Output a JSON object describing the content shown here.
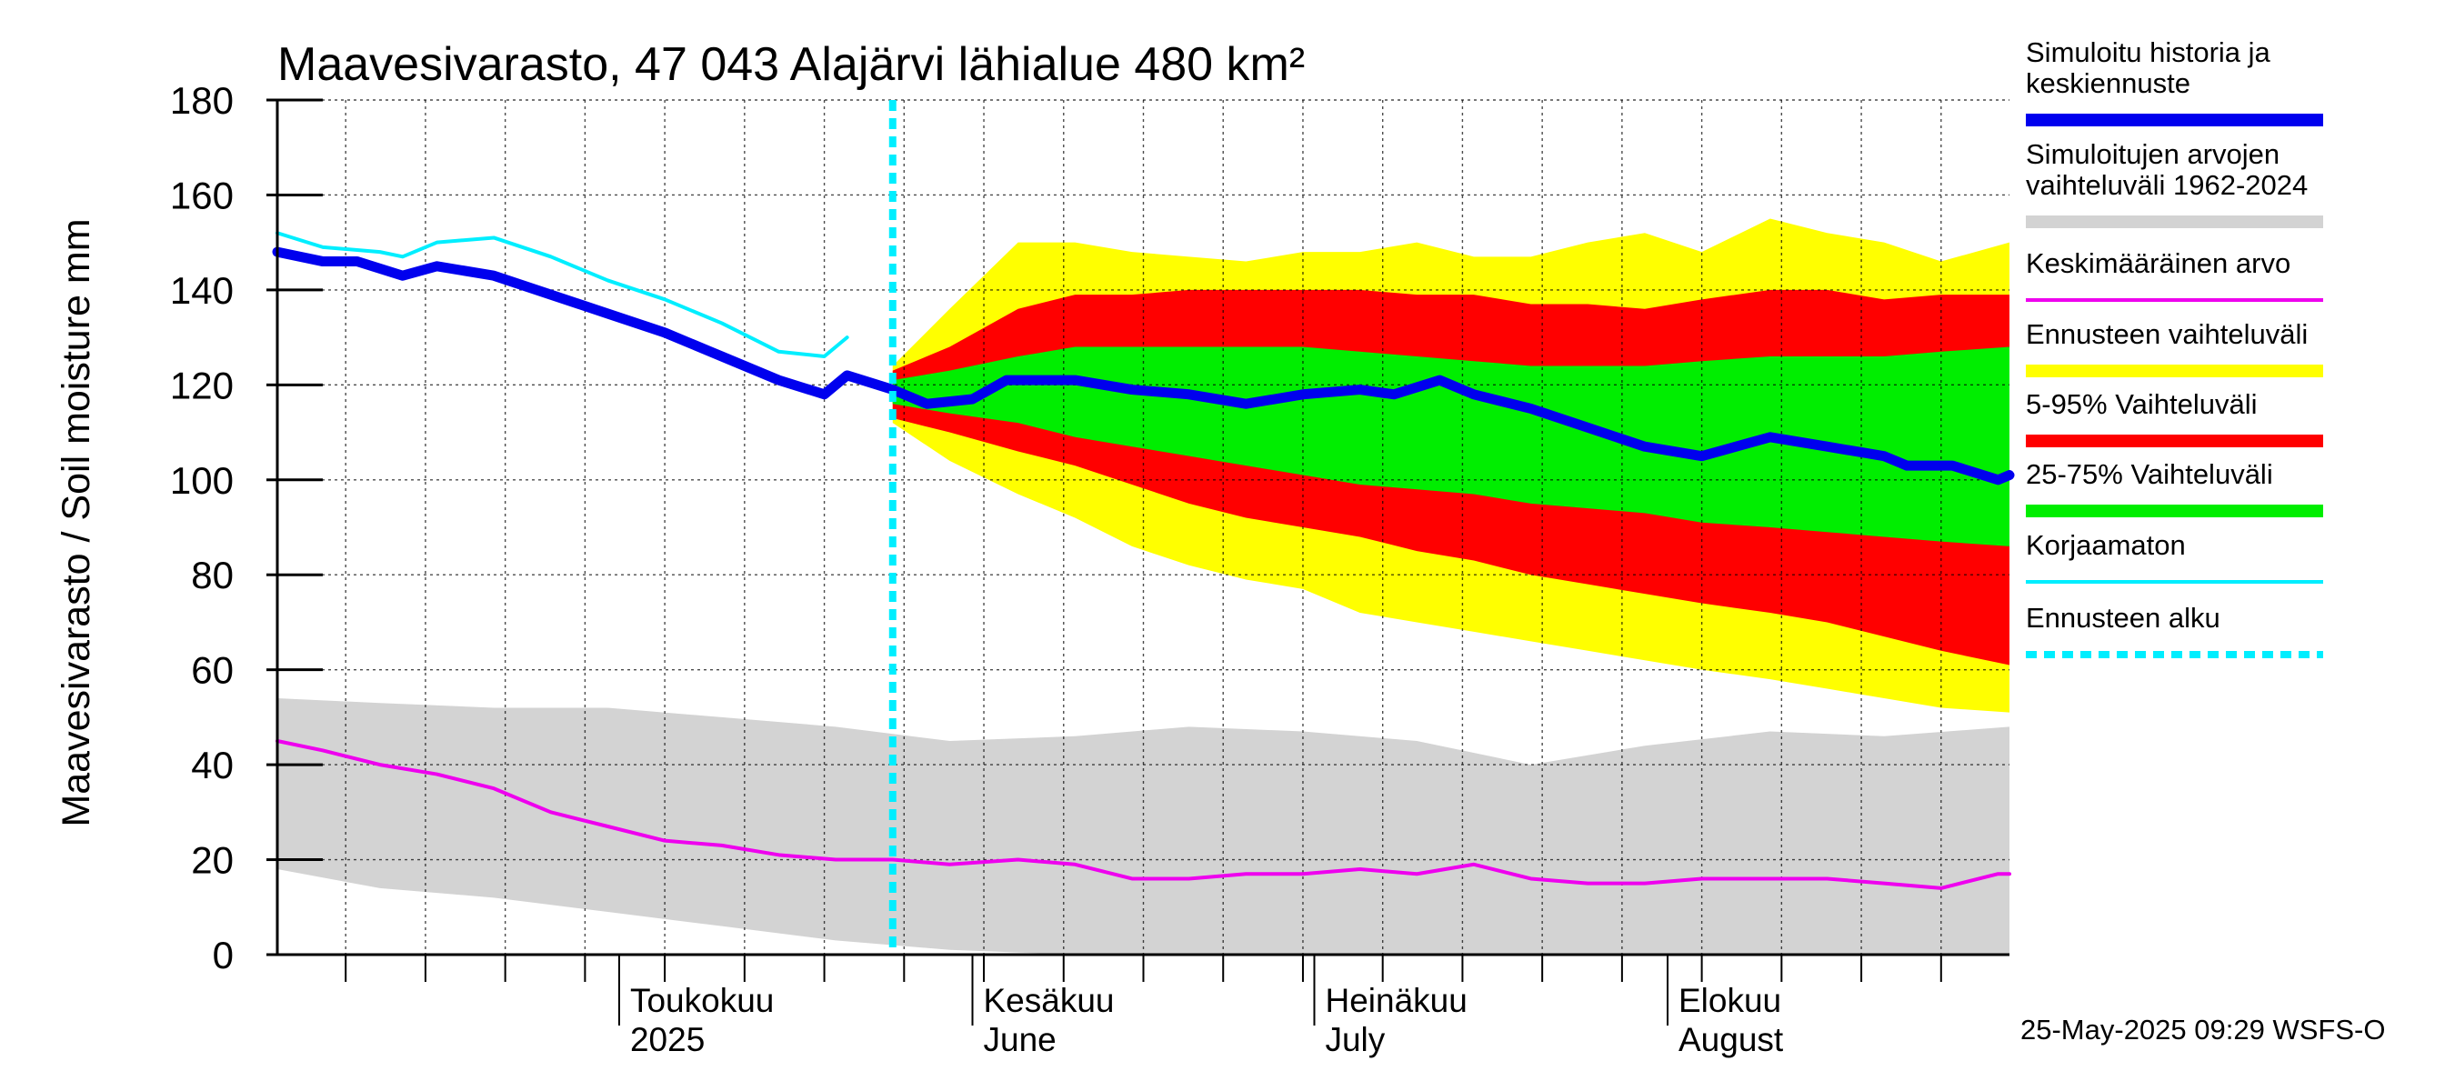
{
  "chart_data": {
    "type": "area",
    "title": "Maavesivarasto, 47 043 Alajärvi lähialue 480 km²",
    "ylabel": "Maavesivarasto / Soil moisture   mm",
    "xlabel": "",
    "ylim": [
      0,
      180
    ],
    "yticks": [
      "0",
      "20",
      "40",
      "60",
      "80",
      "100",
      "120",
      "140",
      "160",
      "180"
    ],
    "xlim": [
      "2025-04-01",
      "2025-08-31"
    ],
    "x_month_labels": [
      {
        "date": "2025-05-01",
        "fi": "Toukokuu",
        "en": "2025"
      },
      {
        "date": "2025-06-01",
        "fi": "Kesäkuu",
        "en": "June"
      },
      {
        "date": "2025-07-01",
        "fi": "Heinäkuu",
        "en": "July"
      },
      {
        "date": "2025-08-01",
        "fi": "Elokuu",
        "en": "August"
      }
    ],
    "grid": true,
    "forecast_start": "2025-05-25",
    "timestamp": "25-May-2025 09:29 WSFS-O",
    "colors": {
      "history": "#0000ee",
      "history_range": "#d3d3d3",
      "mean": "#ee00ee",
      "forecast_range": "#ffff00",
      "p5_95": "#ff0000",
      "p25_75": "#00ee00",
      "uncorrected": "#00eeff",
      "forecast_start": "#00eeff"
    },
    "legend": [
      {
        "key": "history",
        "label_lines": [
          "Simuloitu historia ja",
          "keskiennuste"
        ]
      },
      {
        "key": "history_range",
        "label_lines": [
          "Simuloitujen arvojen",
          "vaihteluväli 1962-2024"
        ]
      },
      {
        "key": "mean",
        "label_lines": [
          "Keskimääräinen arvo"
        ]
      },
      {
        "key": "forecast_range",
        "label_lines": [
          "Ennusteen vaihteluväli"
        ]
      },
      {
        "key": "p5_95",
        "label_lines": [
          "5-95% Vaihteluväli"
        ]
      },
      {
        "key": "p25_75",
        "label_lines": [
          "25-75% Vaihteluväli"
        ]
      },
      {
        "key": "uncorrected",
        "label_lines": [
          "Korjaamaton"
        ]
      },
      {
        "key": "forecast_start",
        "label_lines": [
          "Ennusteen alku"
        ]
      }
    ],
    "series": [
      {
        "name": "Simuloitu historia ja keskiennuste",
        "points": [
          [
            "2025-04-01",
            148
          ],
          [
            "2025-04-05",
            146
          ],
          [
            "2025-04-08",
            146
          ],
          [
            "2025-04-12",
            143
          ],
          [
            "2025-04-15",
            145
          ],
          [
            "2025-04-20",
            143
          ],
          [
            "2025-04-25",
            139
          ],
          [
            "2025-04-30",
            135
          ],
          [
            "2025-05-05",
            131
          ],
          [
            "2025-05-10",
            126
          ],
          [
            "2025-05-15",
            121
          ],
          [
            "2025-05-19",
            118
          ],
          [
            "2025-05-21",
            122
          ],
          [
            "2025-05-25",
            119
          ],
          [
            "2025-05-28",
            116
          ],
          [
            "2025-06-01",
            117
          ],
          [
            "2025-06-04",
            121
          ],
          [
            "2025-06-10",
            121
          ],
          [
            "2025-06-15",
            119
          ],
          [
            "2025-06-20",
            118
          ],
          [
            "2025-06-25",
            116
          ],
          [
            "2025-06-30",
            118
          ],
          [
            "2025-07-05",
            119
          ],
          [
            "2025-07-08",
            118
          ],
          [
            "2025-07-12",
            121
          ],
          [
            "2025-07-15",
            118
          ],
          [
            "2025-07-20",
            115
          ],
          [
            "2025-07-25",
            111
          ],
          [
            "2025-07-30",
            107
          ],
          [
            "2025-08-04",
            105
          ],
          [
            "2025-08-10",
            109
          ],
          [
            "2025-08-15",
            107
          ],
          [
            "2025-08-20",
            105
          ],
          [
            "2025-08-22",
            103
          ],
          [
            "2025-08-26",
            103
          ],
          [
            "2025-08-30",
            100
          ],
          [
            "2025-08-31",
            101
          ]
        ]
      },
      {
        "name": "Korjaamaton",
        "points": [
          [
            "2025-04-01",
            152
          ],
          [
            "2025-04-05",
            149
          ],
          [
            "2025-04-10",
            148
          ],
          [
            "2025-04-12",
            147
          ],
          [
            "2025-04-15",
            150
          ],
          [
            "2025-04-20",
            151
          ],
          [
            "2025-04-25",
            147
          ],
          [
            "2025-04-30",
            142
          ],
          [
            "2025-05-05",
            138
          ],
          [
            "2025-05-10",
            133
          ],
          [
            "2025-05-15",
            127
          ],
          [
            "2025-05-19",
            126
          ],
          [
            "2025-05-21",
            130
          ]
        ]
      },
      {
        "name": "Keskimääräinen arvo",
        "points": [
          [
            "2025-04-01",
            45
          ],
          [
            "2025-04-05",
            43
          ],
          [
            "2025-04-10",
            40
          ],
          [
            "2025-04-15",
            38
          ],
          [
            "2025-04-20",
            35
          ],
          [
            "2025-04-25",
            30
          ],
          [
            "2025-04-30",
            27
          ],
          [
            "2025-05-05",
            24
          ],
          [
            "2025-05-10",
            23
          ],
          [
            "2025-05-15",
            21
          ],
          [
            "2025-05-20",
            20
          ],
          [
            "2025-05-25",
            20
          ],
          [
            "2025-05-30",
            19
          ],
          [
            "2025-06-05",
            20
          ],
          [
            "2025-06-10",
            19
          ],
          [
            "2025-06-15",
            16
          ],
          [
            "2025-06-20",
            16
          ],
          [
            "2025-06-25",
            17
          ],
          [
            "2025-06-30",
            17
          ],
          [
            "2025-07-05",
            18
          ],
          [
            "2025-07-10",
            17
          ],
          [
            "2025-07-15",
            19
          ],
          [
            "2025-07-20",
            16
          ],
          [
            "2025-07-25",
            15
          ],
          [
            "2025-07-30",
            15
          ],
          [
            "2025-08-04",
            16
          ],
          [
            "2025-08-10",
            16
          ],
          [
            "2025-08-15",
            16
          ],
          [
            "2025-08-20",
            15
          ],
          [
            "2025-08-25",
            14
          ],
          [
            "2025-08-30",
            17
          ],
          [
            "2025-08-31",
            17
          ]
        ]
      }
    ],
    "bands": [
      {
        "name": "Simuloitujen arvojen vaihteluväli 1962-2024",
        "points": [
          [
            "2025-04-01",
            18,
            54
          ],
          [
            "2025-04-10",
            14,
            53
          ],
          [
            "2025-04-20",
            12,
            52
          ],
          [
            "2025-04-30",
            9,
            52
          ],
          [
            "2025-05-10",
            6,
            50
          ],
          [
            "2025-05-20",
            3,
            48
          ],
          [
            "2025-05-30",
            1,
            45
          ],
          [
            "2025-06-10",
            0,
            46
          ],
          [
            "2025-06-20",
            0,
            48
          ],
          [
            "2025-06-30",
            0,
            47
          ],
          [
            "2025-07-10",
            0,
            45
          ],
          [
            "2025-07-20",
            0,
            40
          ],
          [
            "2025-07-30",
            0,
            44
          ],
          [
            "2025-08-10",
            0,
            47
          ],
          [
            "2025-08-20",
            0,
            46
          ],
          [
            "2025-08-31",
            0,
            48
          ]
        ]
      },
      {
        "name": "Ennusteen vaihteluväli",
        "points": [
          [
            "2025-05-25",
            112,
            124
          ],
          [
            "2025-05-30",
            104,
            136
          ],
          [
            "2025-06-05",
            97,
            150
          ],
          [
            "2025-06-10",
            92,
            150
          ],
          [
            "2025-06-15",
            86,
            148
          ],
          [
            "2025-06-20",
            82,
            147
          ],
          [
            "2025-06-25",
            79,
            146
          ],
          [
            "2025-06-30",
            77,
            148
          ],
          [
            "2025-07-05",
            72,
            148
          ],
          [
            "2025-07-10",
            70,
            150
          ],
          [
            "2025-07-15",
            68,
            147
          ],
          [
            "2025-07-20",
            66,
            147
          ],
          [
            "2025-07-25",
            64,
            150
          ],
          [
            "2025-07-30",
            62,
            152
          ],
          [
            "2025-08-04",
            60,
            148
          ],
          [
            "2025-08-10",
            58,
            155
          ],
          [
            "2025-08-15",
            56,
            152
          ],
          [
            "2025-08-20",
            54,
            150
          ],
          [
            "2025-08-25",
            52,
            146
          ],
          [
            "2025-08-31",
            51,
            150
          ]
        ]
      },
      {
        "name": "5-95% Vaihteluväli",
        "points": [
          [
            "2025-05-25",
            113,
            123
          ],
          [
            "2025-05-30",
            110,
            128
          ],
          [
            "2025-06-05",
            106,
            136
          ],
          [
            "2025-06-10",
            103,
            139
          ],
          [
            "2025-06-15",
            99,
            139
          ],
          [
            "2025-06-20",
            95,
            140
          ],
          [
            "2025-06-25",
            92,
            140
          ],
          [
            "2025-06-30",
            90,
            140
          ],
          [
            "2025-07-05",
            88,
            140
          ],
          [
            "2025-07-10",
            85,
            139
          ],
          [
            "2025-07-15",
            83,
            139
          ],
          [
            "2025-07-20",
            80,
            137
          ],
          [
            "2025-07-25",
            78,
            137
          ],
          [
            "2025-07-30",
            76,
            136
          ],
          [
            "2025-08-04",
            74,
            138
          ],
          [
            "2025-08-10",
            72,
            140
          ],
          [
            "2025-08-15",
            70,
            140
          ],
          [
            "2025-08-20",
            67,
            138
          ],
          [
            "2025-08-25",
            64,
            139
          ],
          [
            "2025-08-31",
            61,
            139
          ]
        ]
      },
      {
        "name": "25-75% Vaihteluväli",
        "points": [
          [
            "2025-05-25",
            116,
            121
          ],
          [
            "2025-05-30",
            114,
            123
          ],
          [
            "2025-06-05",
            112,
            126
          ],
          [
            "2025-06-10",
            109,
            128
          ],
          [
            "2025-06-15",
            107,
            128
          ],
          [
            "2025-06-20",
            105,
            128
          ],
          [
            "2025-06-25",
            103,
            128
          ],
          [
            "2025-06-30",
            101,
            128
          ],
          [
            "2025-07-05",
            99,
            127
          ],
          [
            "2025-07-10",
            98,
            126
          ],
          [
            "2025-07-15",
            97,
            125
          ],
          [
            "2025-07-20",
            95,
            124
          ],
          [
            "2025-07-25",
            94,
            124
          ],
          [
            "2025-07-30",
            93,
            124
          ],
          [
            "2025-08-04",
            91,
            125
          ],
          [
            "2025-08-10",
            90,
            126
          ],
          [
            "2025-08-15",
            89,
            126
          ],
          [
            "2025-08-20",
            88,
            126
          ],
          [
            "2025-08-25",
            87,
            127
          ],
          [
            "2025-08-31",
            86,
            128
          ]
        ]
      }
    ]
  }
}
